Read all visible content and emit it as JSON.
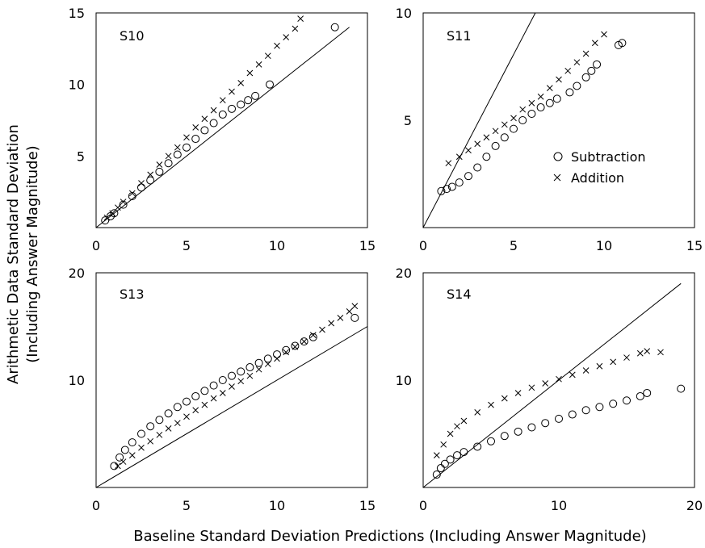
{
  "figure": {
    "xlabel": "Baseline Standard Deviation Predictions (Including Answer Magnitude)",
    "ylabel_line1": "Arithmetic Data Standard Deviation",
    "ylabel_line2": "(Including Answer Magnitude)"
  },
  "legend": {
    "placement": "right-middle of S11 panel",
    "entries": [
      {
        "label": "Subtraction",
        "marker": "circle"
      },
      {
        "label": "Addition",
        "marker": "cross"
      }
    ]
  },
  "chart_data": [
    {
      "type": "scatter",
      "panel": "S10",
      "xlim": [
        0,
        15
      ],
      "ylim": [
        0,
        15
      ],
      "xticks": [
        0,
        5,
        10,
        15
      ],
      "yticks": [
        5,
        10,
        15
      ],
      "xtick_labels": [
        "0",
        "5",
        "10",
        "15"
      ],
      "ytick_labels": [
        "5",
        "10",
        "15"
      ],
      "reference_line": {
        "from": [
          0,
          0
        ],
        "to": [
          14,
          14
        ]
      },
      "series": [
        {
          "name": "Subtraction",
          "marker": "circle",
          "x": [
            0.5,
            0.8,
            1.0,
            1.5,
            2.0,
            2.5,
            3.0,
            3.5,
            4.0,
            4.5,
            5.0,
            5.5,
            6.0,
            6.5,
            7.0,
            7.5,
            8.0,
            8.4,
            8.8,
            9.6,
            13.2
          ],
          "y": [
            0.5,
            0.8,
            1.0,
            1.6,
            2.2,
            2.8,
            3.3,
            3.9,
            4.5,
            5.1,
            5.6,
            6.2,
            6.8,
            7.3,
            7.9,
            8.3,
            8.6,
            8.9,
            9.2,
            10.0,
            14.0
          ]
        },
        {
          "name": "Addition",
          "marker": "cross",
          "x": [
            0.6,
            0.9,
            1.2,
            1.5,
            2.0,
            2.5,
            3.0,
            3.5,
            4.0,
            4.5,
            5.0,
            5.5,
            6.0,
            6.5,
            7.0,
            7.5,
            8.0,
            8.5,
            9.0,
            9.5,
            10.0,
            10.5,
            11.0,
            11.3
          ],
          "y": [
            0.7,
            1.0,
            1.4,
            1.8,
            2.4,
            3.1,
            3.7,
            4.4,
            5.0,
            5.6,
            6.3,
            7.0,
            7.6,
            8.2,
            8.9,
            9.5,
            10.1,
            10.8,
            11.4,
            12.0,
            12.7,
            13.3,
            13.9,
            14.6
          ]
        }
      ]
    },
    {
      "type": "scatter",
      "panel": "S11",
      "xlim": [
        0,
        15
      ],
      "ylim": [
        0,
        10
      ],
      "xticks": [
        0,
        5,
        10,
        15
      ],
      "yticks": [
        5,
        10
      ],
      "xtick_labels": [
        "0",
        "5",
        "10",
        "15"
      ],
      "ytick_labels": [
        "5",
        "10"
      ],
      "reference_line": {
        "from": [
          0,
          0
        ],
        "to": [
          6.2,
          10
        ]
      },
      "series": [
        {
          "name": "Subtraction",
          "marker": "circle",
          "x": [
            1.0,
            1.3,
            1.6,
            2.0,
            2.5,
            3.0,
            3.5,
            4.0,
            4.5,
            5.0,
            5.5,
            6.0,
            6.5,
            7.0,
            7.4,
            8.1,
            8.5,
            9.0,
            9.3,
            9.6,
            10.8,
            11.0
          ],
          "y": [
            1.7,
            1.8,
            1.9,
            2.1,
            2.4,
            2.8,
            3.3,
            3.8,
            4.2,
            4.6,
            5.0,
            5.3,
            5.6,
            5.8,
            6.0,
            6.3,
            6.6,
            7.0,
            7.3,
            7.6,
            8.5,
            8.6
          ]
        },
        {
          "name": "Addition",
          "marker": "cross",
          "x": [
            1.4,
            2.0,
            2.5,
            3.0,
            3.5,
            4.0,
            4.5,
            5.0,
            5.5,
            6.0,
            6.5,
            7.0,
            7.5,
            8.0,
            8.5,
            9.0,
            9.5,
            10.0
          ],
          "y": [
            3.0,
            3.3,
            3.6,
            3.9,
            4.2,
            4.5,
            4.8,
            5.1,
            5.5,
            5.8,
            6.1,
            6.5,
            6.9,
            7.3,
            7.7,
            8.1,
            8.6,
            9.0
          ]
        }
      ]
    },
    {
      "type": "scatter",
      "panel": "S13",
      "xlim": [
        0,
        15
      ],
      "ylim": [
        0,
        20
      ],
      "xticks": [
        0,
        5,
        10,
        15
      ],
      "yticks": [
        10,
        20
      ],
      "xtick_labels": [
        "0",
        "5",
        "10",
        "15"
      ],
      "ytick_labels": [
        "10",
        "20"
      ],
      "reference_line": {
        "from": [
          0,
          0
        ],
        "to": [
          15,
          15
        ]
      },
      "series": [
        {
          "name": "Subtraction",
          "marker": "circle",
          "x": [
            1.0,
            1.3,
            1.6,
            2.0,
            2.5,
            3.0,
            3.5,
            4.0,
            4.5,
            5.0,
            5.5,
            6.0,
            6.5,
            7.0,
            7.5,
            8.0,
            8.5,
            9.0,
            9.5,
            10.0,
            10.5,
            11.0,
            11.5,
            12.0,
            14.3
          ],
          "y": [
            2.0,
            2.8,
            3.5,
            4.2,
            5.0,
            5.7,
            6.3,
            6.9,
            7.5,
            8.0,
            8.5,
            9.0,
            9.5,
            10.0,
            10.4,
            10.8,
            11.2,
            11.6,
            12.0,
            12.4,
            12.8,
            13.2,
            13.6,
            14.0,
            15.8
          ]
        },
        {
          "name": "Addition",
          "marker": "cross",
          "x": [
            1.2,
            1.5,
            2.0,
            2.5,
            3.0,
            3.5,
            4.0,
            4.5,
            5.0,
            5.5,
            6.0,
            6.5,
            7.0,
            7.5,
            8.0,
            8.5,
            9.0,
            9.5,
            10.0,
            10.5,
            11.0,
            11.5,
            12.0,
            12.5,
            13.0,
            13.5,
            14.0,
            14.3
          ],
          "y": [
            2.0,
            2.4,
            3.0,
            3.7,
            4.3,
            4.9,
            5.5,
            6.0,
            6.6,
            7.2,
            7.7,
            8.3,
            8.8,
            9.4,
            9.9,
            10.4,
            11.0,
            11.5,
            12.0,
            12.6,
            13.1,
            13.6,
            14.2,
            14.7,
            15.3,
            15.8,
            16.4,
            16.9
          ]
        }
      ]
    },
    {
      "type": "scatter",
      "panel": "S14",
      "xlim": [
        0,
        20
      ],
      "ylim": [
        0,
        20
      ],
      "xticks": [
        0,
        10,
        20
      ],
      "yticks": [
        10,
        20
      ],
      "xtick_labels": [
        "0",
        "10",
        "20"
      ],
      "ytick_labels": [
        "10",
        "20"
      ],
      "reference_line": {
        "from": [
          0,
          0
        ],
        "to": [
          19,
          19
        ]
      },
      "series": [
        {
          "name": "Subtraction",
          "marker": "circle",
          "x": [
            1.0,
            1.3,
            1.6,
            2.0,
            2.5,
            3.0,
            4.0,
            5.0,
            6.0,
            7.0,
            8.0,
            9.0,
            10.0,
            11.0,
            12.0,
            13.0,
            14.0,
            15.0,
            16.0,
            16.5,
            19.0
          ],
          "y": [
            1.2,
            1.8,
            2.2,
            2.6,
            3.0,
            3.3,
            3.8,
            4.3,
            4.8,
            5.2,
            5.6,
            6.0,
            6.4,
            6.8,
            7.2,
            7.5,
            7.8,
            8.1,
            8.5,
            8.8,
            9.2
          ]
        },
        {
          "name": "Addition",
          "marker": "cross",
          "x": [
            1.0,
            1.5,
            2.0,
            2.5,
            3.0,
            4.0,
            5.0,
            6.0,
            7.0,
            8.0,
            9.0,
            10.0,
            11.0,
            12.0,
            13.0,
            14.0,
            15.0,
            16.0,
            16.5,
            17.5
          ],
          "y": [
            3.0,
            4.0,
            5.0,
            5.7,
            6.2,
            7.0,
            7.7,
            8.3,
            8.8,
            9.3,
            9.7,
            10.1,
            10.5,
            10.9,
            11.3,
            11.7,
            12.1,
            12.5,
            12.7,
            12.6
          ]
        }
      ]
    }
  ]
}
